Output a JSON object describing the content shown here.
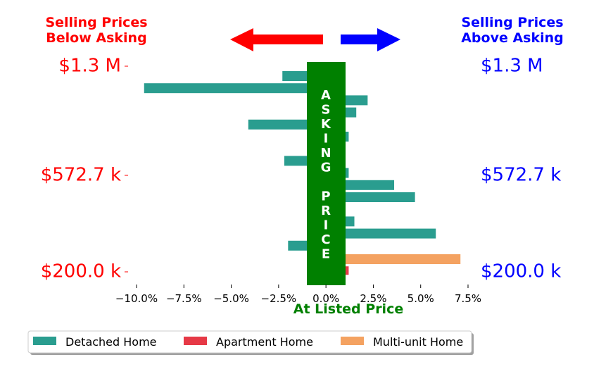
{
  "chart_data": {
    "type": "bar",
    "orientation": "horizontal",
    "xlabel": "At Listed Price",
    "xlim": [
      -0.1,
      0.075
    ],
    "x_ticks": [
      -0.1,
      -0.075,
      -0.05,
      -0.025,
      0.0,
      0.025,
      0.05,
      0.075
    ],
    "x_tick_labels": [
      "−10.0%",
      "−7.5%",
      "−5.0%",
      "−2.5%",
      "0.0%",
      "2.5%",
      "5.0%",
      "7.5%"
    ],
    "y_tick_labels_left": [
      "$1.3 M",
      "$572.7 k",
      "$200.0 k"
    ],
    "y_tick_labels_right": [
      "$1.3 M",
      "$572.7 k",
      "$200.0 k"
    ],
    "header_left": [
      "Selling Prices",
      "Below Asking"
    ],
    "header_right": [
      "Selling Prices",
      "Above Asking"
    ],
    "center_band_text": [
      "A",
      "S",
      "K",
      "I",
      "N",
      "G",
      "",
      "P",
      "R",
      "I",
      "C",
      "E"
    ],
    "legend": {
      "placement": "bottom",
      "entries": [
        "Detached Home",
        "Apartment Home",
        "Multi-unit Home"
      ]
    },
    "series": [
      {
        "name": "Detached Home",
        "color": "#2a9d8f",
        "values": [
          -0.023,
          -0.096,
          0.022,
          0.016,
          -0.041,
          0.012,
          -0.001,
          -0.022,
          0.012,
          0.036,
          0.047,
          -0.001,
          0.015,
          0.058,
          -0.02
        ]
      },
      {
        "name": "Apartment Home",
        "color": "#e63946",
        "values": [
          0.012
        ]
      },
      {
        "name": "Multi-unit Home",
        "color": "#f4a261",
        "values": [
          0.071
        ]
      }
    ],
    "colors": {
      "below": "#ff0000",
      "above": "#0000ff",
      "asking_band": "#008000"
    }
  }
}
